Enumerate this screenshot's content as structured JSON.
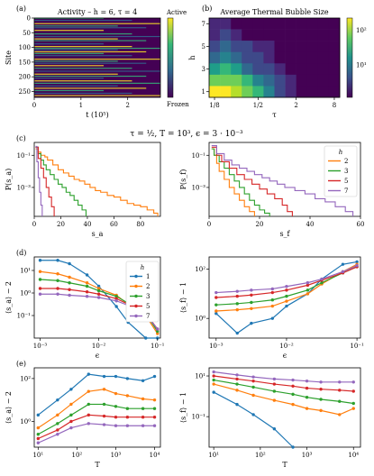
{
  "figure": {
    "shared_title_c": "τ = ½, T = 10³, ϵ = 3 · 10⁻³"
  },
  "chart_data": [
    {
      "id": "a",
      "panel_label": "(a)",
      "type": "heatmap",
      "title": "Activity – h = 6, τ = 4",
      "xlabel": "t (10⁵)",
      "ylabel": "Site",
      "x_ticks": [
        "0",
        "1",
        "2"
      ],
      "y_ticks": [
        "0",
        "50",
        "100",
        "150",
        "200",
        "250"
      ],
      "xlim": [
        0,
        2.7
      ],
      "ylim": [
        0,
        270
      ],
      "colorbar": {
        "max_label": "Active",
        "min_label": "Frozen",
        "colors": [
          "#440154",
          "#31688e",
          "#35b779",
          "#fde725"
        ]
      },
      "bright_rows": [
        1,
        8,
        19,
        27,
        33,
        42,
        54,
        63,
        71,
        77,
        88,
        97,
        103,
        108,
        115,
        121,
        128,
        140,
        147,
        154,
        162,
        171,
        181,
        191,
        198,
        205,
        214,
        222,
        231,
        239,
        247,
        256,
        264
      ]
    },
    {
      "id": "b",
      "panel_label": "(b)",
      "type": "heatmap",
      "title": "Average Thermal Bubble Size",
      "xlabel": "τ",
      "ylabel": "h",
      "x_ticks": [
        "1/8",
        "1/2",
        "2",
        "8"
      ],
      "y_ticks": [
        "1",
        "3",
        "5",
        "7"
      ],
      "colorbar": {
        "ticks": [
          "10¹",
          "10²"
        ],
        "colors": [
          "#440154",
          "#3b528b",
          "#21918c",
          "#5ec962",
          "#fde725"
        ]
      },
      "rows_h": [
        7,
        6,
        5,
        4,
        3,
        2,
        1
      ],
      "values": [
        [
          1.1,
          1.1,
          1.0,
          1.0,
          1.0,
          1.0,
          1.0,
          1.0,
          1.0,
          1.0,
          1.0,
          1.0
        ],
        [
          1.15,
          1.2,
          1.1,
          1.05,
          1.0,
          1.0,
          1.0,
          1.0,
          1.0,
          1.0,
          1.0,
          1.0
        ],
        [
          1.3,
          1.4,
          1.3,
          1.2,
          1.1,
          1.1,
          1.0,
          1.0,
          1.0,
          1.0,
          1.0,
          1.0
        ],
        [
          1.4,
          1.5,
          1.4,
          1.3,
          1.2,
          1.1,
          1.05,
          1.0,
          1.0,
          1.0,
          1.0,
          1.0
        ],
        [
          1.6,
          1.7,
          1.6,
          1.4,
          1.3,
          1.2,
          1.1,
          1.05,
          1.0,
          1.0,
          1.0,
          1.0
        ],
        [
          1.8,
          1.9,
          1.8,
          1.7,
          1.5,
          1.35,
          1.2,
          1.1,
          1.05,
          1.0,
          1.0,
          1.0
        ],
        [
          2.05,
          2.1,
          2.0,
          1.9,
          1.7,
          1.5,
          1.3,
          1.15,
          1.05,
          1.0,
          1.0,
          1.0
        ]
      ]
    },
    {
      "id": "c_left",
      "panel_label": "(c)",
      "type": "line",
      "xlabel": "s_a",
      "ylabel": "P(s_a)",
      "x_ticks": [
        "0",
        "20",
        "40",
        "60",
        "80"
      ],
      "y_ticks": [
        "10⁻¹",
        "10⁻³"
      ],
      "xlim": [
        0,
        95
      ],
      "ylog": [
        -4.8,
        -0.2
      ],
      "series": [
        {
          "h": "2",
          "color": "#ff7f0e",
          "x": [
            1,
            3,
            5,
            8,
            10,
            14,
            18,
            22,
            26,
            30,
            34,
            38,
            42,
            46,
            50,
            55,
            60,
            65,
            70,
            75,
            80,
            85,
            90,
            93
          ],
          "logy": [
            -0.6,
            -0.8,
            -1.0,
            -1.1,
            -1.3,
            -1.6,
            -1.9,
            -2.1,
            -2.3,
            -2.5,
            -2.6,
            -2.8,
            -3.0,
            -3.2,
            -3.3,
            -3.5,
            -3.6,
            -3.8,
            -4.0,
            -4.1,
            -4.2,
            -4.4,
            -4.6,
            -4.8
          ]
        },
        {
          "h": "3",
          "color": "#2ca02c",
          "x": [
            1,
            3,
            5,
            7,
            9,
            12,
            15,
            18,
            21,
            24,
            27,
            30,
            33,
            36,
            39
          ],
          "logy": [
            -0.5,
            -0.9,
            -1.3,
            -1.6,
            -1.9,
            -2.2,
            -2.5,
            -2.8,
            -3.0,
            -3.3,
            -3.5,
            -3.8,
            -4.1,
            -4.4,
            -4.8
          ]
        },
        {
          "h": "5",
          "color": "#d62728",
          "x": [
            1,
            3,
            5,
            7,
            9,
            11,
            13,
            15
          ],
          "logy": [
            -0.5,
            -1.2,
            -1.8,
            -2.4,
            -3.0,
            -3.6,
            -4.2,
            -4.8
          ]
        },
        {
          "h": "7",
          "color": "#9467bd",
          "x": [
            1,
            2,
            3,
            4,
            5,
            6
          ],
          "logy": [
            -0.45,
            -1.4,
            -2.4,
            -3.3,
            -4.1,
            -4.8
          ]
        }
      ]
    },
    {
      "id": "c_right",
      "type": "line",
      "xlabel": "s_f",
      "ylabel": "P(s_f)",
      "x_ticks": [
        "0",
        "20",
        "40",
        "60"
      ],
      "y_ticks": [
        "10⁻¹",
        "10⁻³"
      ],
      "xlim": [
        0,
        60
      ],
      "ylog": [
        -4.8,
        -0.2
      ],
      "legend": {
        "title": "h",
        "placement": "top-right",
        "labels": [
          "2",
          "3",
          "5",
          "7"
        ]
      },
      "series": [
        {
          "h": "2",
          "color": "#ff7f0e",
          "x": [
            1,
            2,
            3,
            4,
            6,
            8,
            10,
            12,
            14,
            16,
            18
          ],
          "logy": [
            -0.6,
            -1.0,
            -1.5,
            -2.0,
            -2.5,
            -3.0,
            -3.4,
            -3.8,
            -4.2,
            -4.5,
            -4.8
          ]
        },
        {
          "h": "3",
          "color": "#2ca02c",
          "x": [
            1,
            2,
            4,
            6,
            8,
            10,
            12,
            14,
            16,
            18,
            20,
            22,
            24
          ],
          "logy": [
            -0.6,
            -1.0,
            -1.4,
            -1.8,
            -2.2,
            -2.6,
            -3.0,
            -3.4,
            -3.8,
            -4.1,
            -4.4,
            -4.6,
            -4.8
          ]
        },
        {
          "h": "5",
          "color": "#d62728",
          "x": [
            1,
            3,
            5,
            8,
            11,
            14,
            17,
            20,
            23,
            26,
            29,
            31,
            33
          ],
          "logy": [
            -0.5,
            -1.0,
            -1.4,
            -1.8,
            -2.2,
            -2.5,
            -2.8,
            -3.1,
            -3.4,
            -3.7,
            -4.1,
            -4.5,
            -4.8
          ]
        },
        {
          "h": "7",
          "color": "#9467bd",
          "x": [
            1,
            3,
            6,
            9,
            12,
            15,
            18,
            21,
            24,
            27,
            30,
            34,
            38,
            42,
            46,
            50,
            54,
            57
          ],
          "logy": [
            -0.4,
            -0.9,
            -1.3,
            -1.6,
            -1.8,
            -2.0,
            -2.2,
            -2.4,
            -2.6,
            -2.8,
            -3.0,
            -3.2,
            -3.4,
            -3.7,
            -3.9,
            -4.2,
            -4.5,
            -4.8
          ]
        }
      ]
    },
    {
      "id": "d_left",
      "panel_label": "(d)",
      "type": "line",
      "xlabel": "ϵ",
      "ylabel": "⟨s_a⟩ − 2",
      "x_ticks": [
        "10⁻³",
        "10⁻²",
        "10⁻¹"
      ],
      "y_ticks": [
        "10⁻¹",
        "10⁰",
        "10¹"
      ],
      "xlog": [
        -3.1,
        -0.95
      ],
      "ylog": [
        -2.0,
        1.6
      ],
      "legend": {
        "title": "h",
        "placement": "top-right",
        "labels": [
          "1",
          "2",
          "3",
          "5",
          "7"
        ]
      },
      "series": [
        {
          "h": "1",
          "color": "#1f77b4",
          "logx": [
            -3,
            -2.7,
            -2.5,
            -2.2,
            -2,
            -1.7,
            -1.5,
            -1.2,
            -1
          ],
          "logy": [
            1.45,
            1.45,
            1.3,
            0.8,
            0.3,
            -0.6,
            -1.3,
            -2.0,
            -2.0
          ]
        },
        {
          "h": "2",
          "color": "#ff7f0e",
          "logx": [
            -3,
            -2.7,
            -2.5,
            -2.2,
            -2,
            -1.7,
            -1.5,
            -1.2,
            -1
          ],
          "logy": [
            0.95,
            0.85,
            0.7,
            0.45,
            0.2,
            -0.1,
            -0.5,
            -1.0,
            -1.8
          ]
        },
        {
          "h": "3",
          "color": "#2ca02c",
          "logx": [
            -3,
            -2.7,
            -2.5,
            -2.2,
            -2,
            -1.7,
            -1.5,
            -1.2,
            -1
          ],
          "logy": [
            0.6,
            0.55,
            0.45,
            0.3,
            0.1,
            -0.15,
            -0.45,
            -0.9,
            -1.7
          ]
        },
        {
          "h": "5",
          "color": "#d62728",
          "logx": [
            -3,
            -2.7,
            -2.5,
            -2.2,
            -2,
            -1.7,
            -1.5,
            -1.2,
            -1
          ],
          "logy": [
            0.2,
            0.2,
            0.15,
            0.05,
            -0.05,
            -0.25,
            -0.5,
            -0.9,
            -1.6
          ]
        },
        {
          "h": "7",
          "color": "#9467bd",
          "logx": [
            -3,
            -2.7,
            -2.5,
            -2.2,
            -2,
            -1.7,
            -1.5,
            -1.2,
            -1
          ],
          "logy": [
            -0.05,
            -0.05,
            -0.1,
            -0.15,
            -0.2,
            -0.35,
            -0.55,
            -0.95,
            -1.6
          ]
        }
      ]
    },
    {
      "id": "d_right",
      "type": "line",
      "xlabel": "ϵ",
      "ylabel": "⟨s_f⟩ − 1",
      "x_ticks": [
        "10⁻³",
        "10⁻²",
        "10⁻¹"
      ],
      "y_ticks": [
        "10⁰",
        "10²"
      ],
      "xlog": [
        -3.1,
        -0.95
      ],
      "ylog": [
        -0.8,
        2.5
      ],
      "series": [
        {
          "h": "1",
          "color": "#1f77b4",
          "logx": [
            -3,
            -2.7,
            -2.5,
            -2.2,
            -2,
            -1.7,
            -1.5,
            -1.2,
            -1
          ],
          "logy": [
            0.2,
            -0.6,
            -0.2,
            0.0,
            0.5,
            1.0,
            1.6,
            2.2,
            2.3
          ]
        },
        {
          "h": "2",
          "color": "#ff7f0e",
          "logx": [
            -3,
            -2.7,
            -2.5,
            -2.2,
            -2,
            -1.7,
            -1.5,
            -1.2,
            -1
          ],
          "logy": [
            0.3,
            0.35,
            0.4,
            0.5,
            0.7,
            1.0,
            1.4,
            1.9,
            2.2
          ]
        },
        {
          "h": "3",
          "color": "#2ca02c",
          "logx": [
            -3,
            -2.7,
            -2.5,
            -2.2,
            -2,
            -1.7,
            -1.5,
            -1.2,
            -1
          ],
          "logy": [
            0.55,
            0.6,
            0.65,
            0.75,
            0.9,
            1.15,
            1.45,
            1.85,
            2.1
          ]
        },
        {
          "h": "5",
          "color": "#d62728",
          "logx": [
            -3,
            -2.7,
            -2.5,
            -2.2,
            -2,
            -1.7,
            -1.5,
            -1.2,
            -1
          ],
          "logy": [
            0.85,
            0.9,
            0.95,
            1.05,
            1.15,
            1.35,
            1.55,
            1.85,
            2.1
          ]
        },
        {
          "h": "7",
          "color": "#9467bd",
          "logx": [
            -3,
            -2.7,
            -2.5,
            -2.2,
            -2,
            -1.7,
            -1.5,
            -1.2,
            -1
          ],
          "logy": [
            1.05,
            1.1,
            1.15,
            1.2,
            1.3,
            1.45,
            1.6,
            1.9,
            2.15
          ]
        }
      ]
    },
    {
      "id": "e_left",
      "panel_label": "(e)",
      "type": "line",
      "xlabel": "T",
      "ylabel": "⟨s_a⟩ − 2",
      "x_ticks": [
        "10¹",
        "10²",
        "10³",
        "10⁴"
      ],
      "y_ticks": [
        "10⁰",
        "10²"
      ],
      "xlog": [
        0.9,
        4.15
      ],
      "ylog": [
        -1.2,
        2.5
      ],
      "series": [
        {
          "h": "1",
          "color": "#1f77b4",
          "logx": [
            1,
            1.5,
            1.85,
            2.3,
            2.7,
            3,
            3.3,
            3.7,
            4
          ],
          "logy": [
            0.3,
            1.0,
            1.5,
            2.2,
            2.1,
            2.1,
            2.0,
            1.9,
            2.1
          ]
        },
        {
          "h": "2",
          "color": "#ff7f0e",
          "logx": [
            1,
            1.5,
            1.85,
            2.3,
            2.7,
            3,
            3.3,
            3.7,
            4
          ],
          "logy": [
            -0.3,
            0.3,
            0.8,
            1.4,
            1.5,
            1.3,
            1.2,
            1.05,
            1.0
          ]
        },
        {
          "h": "3",
          "color": "#2ca02c",
          "logx": [
            1,
            1.5,
            1.85,
            2.3,
            2.7,
            3,
            3.3,
            3.7,
            4
          ],
          "logy": [
            -0.6,
            -0.1,
            0.3,
            0.8,
            0.8,
            0.7,
            0.6,
            0.6,
            0.6
          ]
        },
        {
          "h": "5",
          "color": "#d62728",
          "logx": [
            1,
            1.5,
            1.85,
            2.3,
            2.7,
            3,
            3.3,
            3.7,
            4
          ],
          "logy": [
            -0.8,
            -0.4,
            0.0,
            0.3,
            0.25,
            0.2,
            0.2,
            0.2,
            0.2
          ]
        },
        {
          "h": "7",
          "color": "#9467bd",
          "logx": [
            1,
            1.5,
            1.85,
            2.3,
            2.7,
            3,
            3.3,
            3.7,
            4
          ],
          "logy": [
            -1.0,
            -0.6,
            -0.3,
            -0.1,
            -0.15,
            -0.2,
            -0.2,
            -0.2,
            -0.2
          ]
        }
      ]
    },
    {
      "id": "e_right",
      "type": "line",
      "xlabel": "T",
      "ylabel": "⟨s_f⟩ − 1",
      "x_ticks": [
        "10¹",
        "10²",
        "10³",
        "10⁴"
      ],
      "y_ticks": [
        "10⁻¹",
        "10¹"
      ],
      "xlog": [
        0.9,
        4.15
      ],
      "ylog": [
        -2.5,
        1.4
      ],
      "series": [
        {
          "h": "1",
          "color": "#1f77b4",
          "logx": [
            1,
            1.5,
            1.85,
            2.3,
            2.7
          ],
          "logy": [
            0.2,
            -0.4,
            -0.9,
            -1.6,
            -2.5
          ]
        },
        {
          "h": "2",
          "color": "#ff7f0e",
          "logx": [
            1,
            1.5,
            1.85,
            2.3,
            2.7,
            3,
            3.3,
            3.7,
            4
          ],
          "logy": [
            0.6,
            0.3,
            0.05,
            -0.2,
            -0.4,
            -0.6,
            -0.7,
            -0.9,
            -0.6
          ]
        },
        {
          "h": "3",
          "color": "#2ca02c",
          "logx": [
            1,
            1.5,
            1.85,
            2.3,
            2.7,
            3,
            3.3,
            3.7,
            4
          ],
          "logy": [
            0.8,
            0.6,
            0.45,
            0.25,
            0.1,
            -0.05,
            -0.15,
            -0.25,
            -0.35
          ]
        },
        {
          "h": "5",
          "color": "#d62728",
          "logx": [
            1,
            1.5,
            1.85,
            2.3,
            2.7,
            3,
            3.3,
            3.7,
            4
          ],
          "logy": [
            1.0,
            0.85,
            0.75,
            0.6,
            0.5,
            0.4,
            0.35,
            0.3,
            0.25
          ]
        },
        {
          "h": "7",
          "color": "#9467bd",
          "logx": [
            1,
            1.5,
            1.85,
            2.3,
            2.7,
            3,
            3.3,
            3.7,
            4
          ],
          "logy": [
            1.2,
            1.05,
            0.95,
            0.85,
            0.8,
            0.75,
            0.7,
            0.7,
            0.7
          ]
        }
      ]
    }
  ]
}
